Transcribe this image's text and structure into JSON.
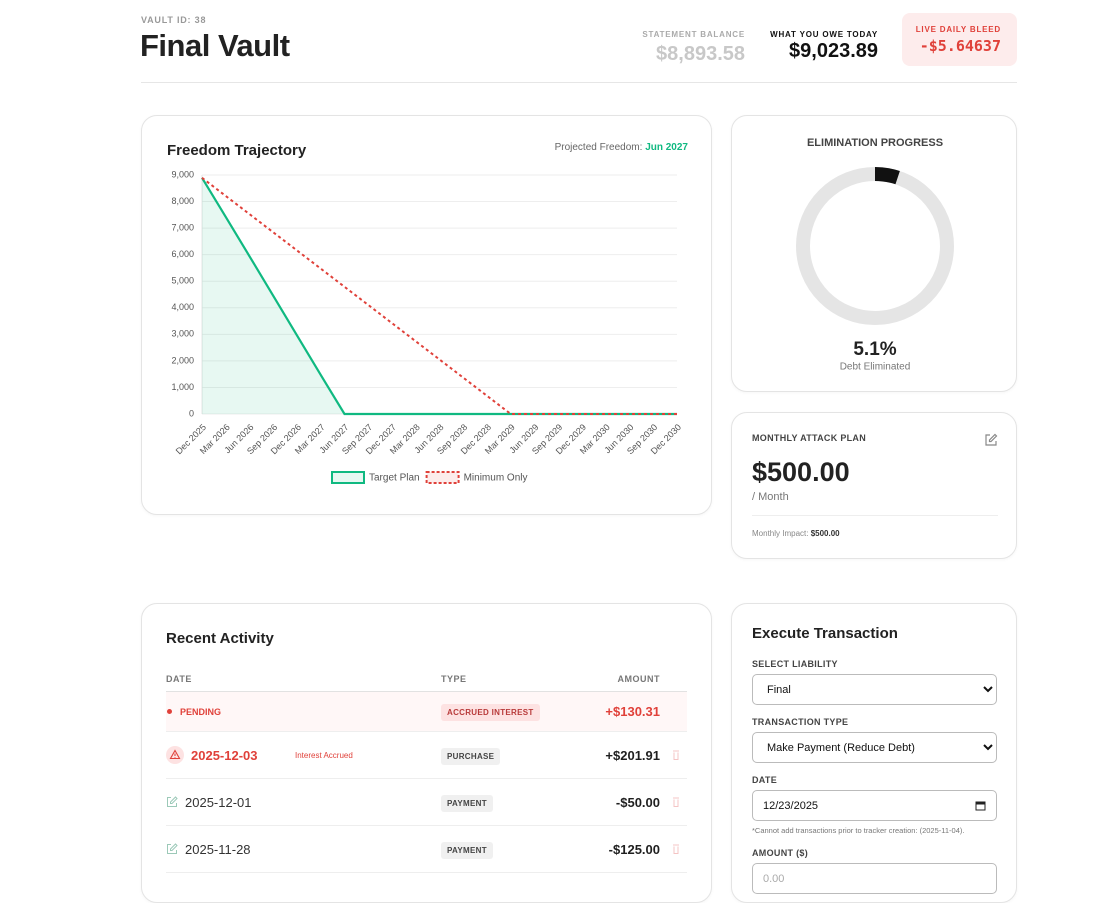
{
  "header": {
    "vault_id": "VAULT ID: 38",
    "title": "Final Vault",
    "statement_label": "STATEMENT BALANCE",
    "statement_value": "$8,893.58",
    "owe_label": "WHAT YOU OWE TODAY",
    "owe_value": "$9,023.89",
    "bleed_label": "LIVE DAILY BLEED",
    "bleed_value": "-$5.64637"
  },
  "trajectory": {
    "projected_label": "Projected Freedom:",
    "projected_value": "Jun 2027"
  },
  "chart_data": {
    "type": "line",
    "title": "Freedom Trajectory",
    "categories": [
      "Dec 2025",
      "Mar 2026",
      "Jun 2026",
      "Sep 2026",
      "Dec 2026",
      "Mar 2027",
      "Jun 2027",
      "Sep 2027",
      "Dec 2027",
      "Mar 2028",
      "Jun 2028",
      "Sep 2028",
      "Dec 2028",
      "Mar 2029",
      "Jun 2029",
      "Sep 2029",
      "Dec 2029",
      "Mar 2030",
      "Jun 2030",
      "Sep 2030",
      "Dec 2030"
    ],
    "series": [
      {
        "name": "Target Plan",
        "color": "#10b981",
        "area": true,
        "values": [
          8894,
          7420,
          5940,
          4450,
          2960,
          1470,
          0,
          0,
          0,
          0,
          0,
          0,
          0,
          0,
          0,
          0,
          0,
          0,
          0,
          0,
          0
        ]
      },
      {
        "name": "Minimum Only",
        "color": "#e0413a",
        "dashed": true,
        "values": [
          8894,
          8210,
          7526,
          6842,
          6158,
          5474,
          4790,
          4106,
          3421,
          2737,
          2053,
          1369,
          684,
          0,
          0,
          0,
          0,
          0,
          0,
          0,
          0
        ]
      }
    ],
    "ylim": [
      0,
      9000
    ],
    "yticks": [
      0,
      {
        "value": 1000,
        "label": "1,000"
      },
      {
        "value": 2000,
        "label": "2,000"
      },
      {
        "value": 3000,
        "label": "3,000"
      },
      {
        "value": 4000,
        "label": "4,000"
      },
      {
        "value": 5000,
        "label": "5,000"
      },
      {
        "value": 6000,
        "label": "6,000"
      },
      {
        "value": 7000,
        "label": "7,000"
      },
      {
        "value": 8000,
        "label": "8,000"
      },
      {
        "value": 9000,
        "label": "9,000"
      }
    ],
    "grid": true,
    "legend": "bottom"
  },
  "progress": {
    "title": "ELIMINATION PROGRESS",
    "value": 5.1,
    "value_label": "5.1%",
    "caption": "Debt Eliminated"
  },
  "attack_plan": {
    "title": "MONTHLY ATTACK PLAN",
    "amount": "$500.00",
    "period": "/ Month",
    "impact_label": "Monthly Impact:",
    "impact_value": "$500.00"
  },
  "activity": {
    "title": "Recent Activity",
    "columns": [
      "DATE",
      "TYPE",
      "AMOUNT"
    ],
    "rows": [
      {
        "date": "PENDING",
        "type": "ACCRUED INTEREST",
        "amount": "+$130.31"
      },
      {
        "date": "2025-12-03",
        "note": "Interest Accrued",
        "type": "PURCHASE",
        "amount": "+$201.91"
      },
      {
        "date": "2025-12-01",
        "type": "PAYMENT",
        "amount": "-$50.00"
      },
      {
        "date": "2025-11-28",
        "type": "PAYMENT",
        "amount": "-$125.00"
      }
    ]
  },
  "transaction": {
    "title": "Execute Transaction",
    "liability_label": "SELECT LIABILITY",
    "liability": "Final",
    "type_label": "TRANSACTION TYPE",
    "type": "Make Payment (Reduce Debt)",
    "date_label": "DATE",
    "date": "12/23/2025",
    "date_note": "*Cannot add transactions prior to tracker creation: (2025-11-04).",
    "amount_label": "AMOUNT ($)",
    "amount_placeholder": "0.00"
  }
}
